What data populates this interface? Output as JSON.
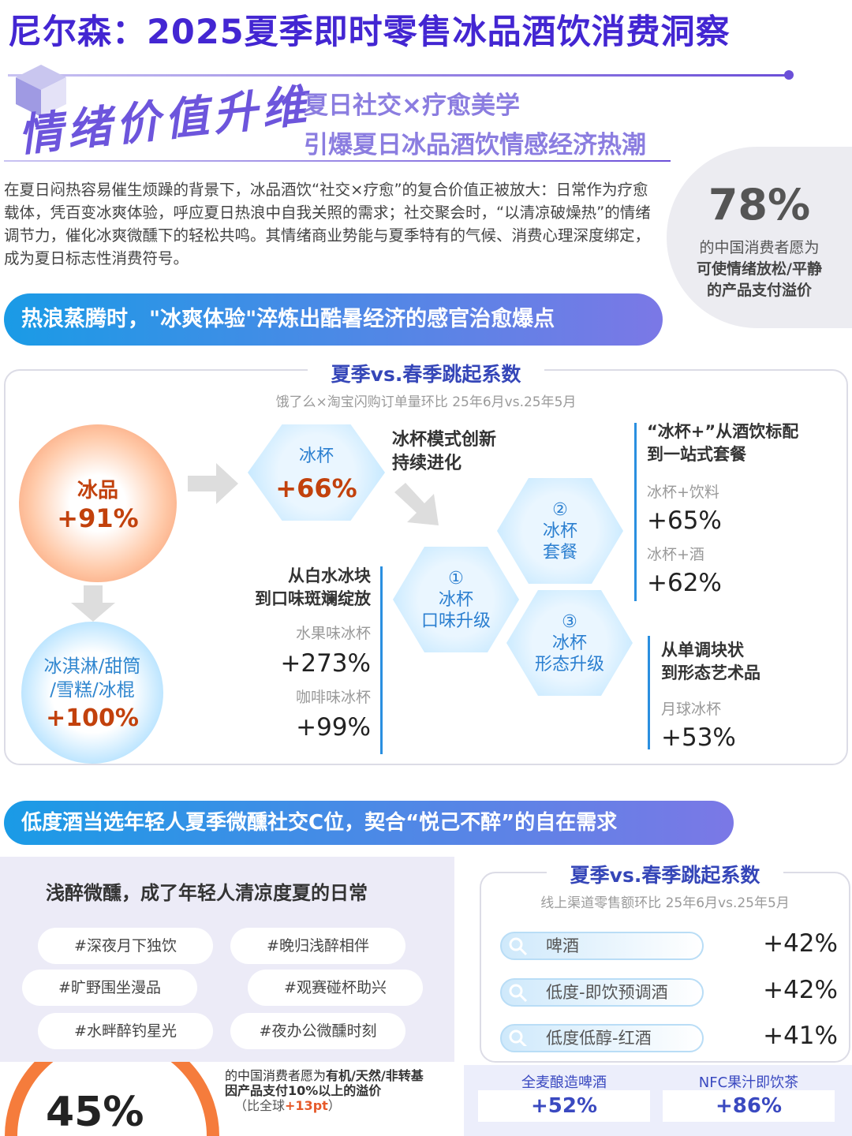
{
  "header": {
    "title": "尼尔森：2025夏季即时零售冰品酒饮消费洞察"
  },
  "hero": {
    "tag": "情绪价值升维",
    "lines": [
      "夏日社交×疗愈美学",
      "引爆夏日冰品酒饮情感经济热潮"
    ]
  },
  "intro": "在夏日闷热容易催生烦躁的背景下，冰品酒饮“社交×疗愈”的复合价值正被放大：日常作为疗愈载体，凭百变冰爽体验，呼应夏日热浪中自我关照的需求；社交聚会时，“以清凉破燥热”的情绪调节力，催化冰爽微醺下的轻松共鸣。其情绪商业势能与夏季特有的气候、消费心理深度绑定，成为夏日标志性消费符号。",
  "stat1": {
    "value": "78%",
    "lines": [
      "的中国消费者愿为",
      "可使情绪放松/平静",
      "的产品支付溢价"
    ]
  },
  "section1": {
    "banner": "热浪蒸腾时，\"冰爽体验\"淬炼出酷暑经济的感官治愈爆点",
    "title": "夏季vs.春季跳起系数",
    "subtitle": "饿了么×淘宝闪购订单量环比 25年6月vs.25年5月",
    "ice": {
      "label": "冰品",
      "value": "+91%"
    },
    "icecream": {
      "lines": [
        "冰淇淋/甜筒",
        "/雪糕/冰棍"
      ],
      "value": "+100%"
    },
    "cup": {
      "label": "冰杯",
      "value": "+66%"
    },
    "note": [
      "冰杯模式创新",
      "持续进化"
    ],
    "hexes": [
      [
        "①",
        "冰杯",
        "口味升级"
      ],
      [
        "②",
        "冰杯",
        "套餐"
      ],
      [
        "③",
        "冰杯",
        "形态升级"
      ]
    ],
    "groups": [
      {
        "heading": [
          "从白水冰块",
          "到口味斑斓绽放"
        ],
        "items": [
          {
            "label": "水果味冰杯",
            "value": "+273%"
          },
          {
            "label": "咖啡味冰杯",
            "value": "+99%"
          }
        ]
      },
      {
        "heading": [
          "“冰杯+”从酒饮标配",
          "到一站式套餐"
        ],
        "items": [
          {
            "label": "冰杯+饮料",
            "value": "+65%"
          },
          {
            "label": "冰杯+酒",
            "value": "+62%"
          }
        ]
      },
      {
        "heading": [
          "从单调块状",
          "到形态艺术品"
        ],
        "items": [
          {
            "label": "月球冰杯",
            "value": "+53%"
          }
        ]
      }
    ]
  },
  "section2": {
    "banner": "低度酒当选年轻人夏季微醺社交C位，契合“悦己不醉”的自在需求",
    "left": {
      "title": "浅醉微醺，成了年轻人清凉度夏的日常",
      "tags": [
        "#深夜月下独饮",
        "#晚归浅醉相伴",
        "#旷野围坐漫品",
        "#观赛碰杯助兴",
        "#水畔醉钓星光",
        "#夜办公微醺时刻"
      ]
    },
    "right": {
      "title": "夏季vs.春季跳起系数",
      "subtitle": "线上渠道零售额环比 25年6月vs.25年5月",
      "rows": [
        {
          "label": "啤酒",
          "value": "+42%"
        },
        {
          "label": "低度-即饮预调酒",
          "value": "+42%"
        },
        {
          "label": "低度低醇-红酒",
          "value": "+41%"
        }
      ]
    },
    "stat2": {
      "value": "45%",
      "text": [
        "的中国消费者愿为",
        "有机/天然/非转基因产品支付10%以上的溢价"
      ],
      "note": [
        "（比全球",
        "+13pt",
        "）"
      ]
    },
    "boxes": [
      {
        "label": "全麦酿造啤酒",
        "value": "+52%"
      },
      {
        "label": "NFC果汁即饮茶",
        "value": "+86%"
      }
    ]
  }
}
